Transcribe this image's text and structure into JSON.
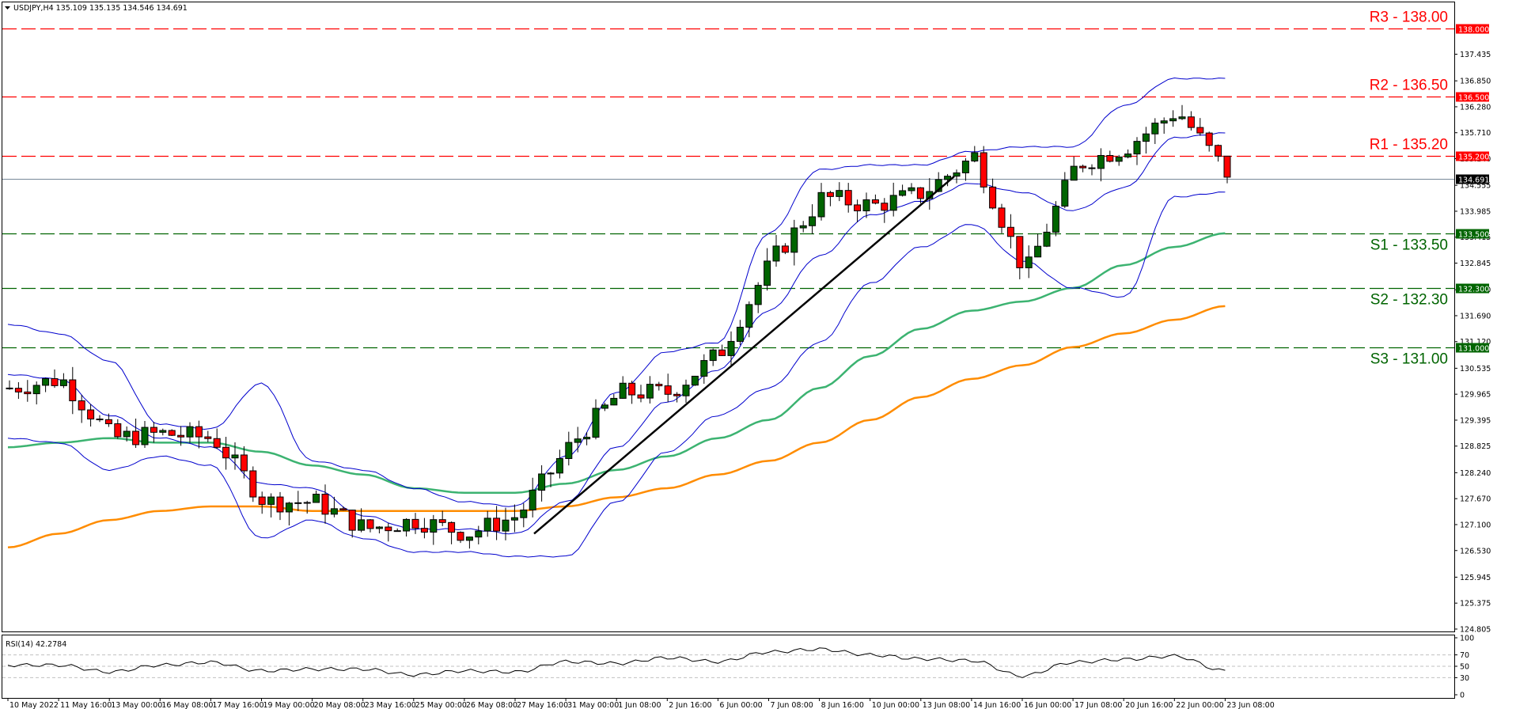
{
  "header": {
    "symbol": "USDJPY,H4",
    "ohlc": "135.109 135.135 134.546 134.691",
    "title_full": "USDJPY,H4  135.109 135.135 134.546 134.691",
    "dropdown_icon": "triangle-down-icon"
  },
  "colors": {
    "background": "#ffffff",
    "bull_candle": "#006400",
    "bear_candle": "#ff0000",
    "resistance": "#ff0000",
    "support": "#006400",
    "bollinger": "#0000cd",
    "ma_green": "#3cb371",
    "ma_orange": "#ff8c00",
    "trendline": "#000000",
    "current_price_line": "#778899",
    "rsi_line": "#000000",
    "rsi_levels": "#c0c0c0"
  },
  "levels": [
    {
      "id": "R3",
      "label": "R3 - 138.00",
      "value": 138.0,
      "badge": "138.000",
      "type": "resistance"
    },
    {
      "id": "R2",
      "label": "R2 - 136.50",
      "value": 136.5,
      "badge": "136.500",
      "type": "resistance"
    },
    {
      "id": "R1",
      "label": "R1 - 135.20",
      "value": 135.2,
      "badge": "135.200",
      "type": "resistance"
    },
    {
      "id": "S1",
      "label": "S1 - 133.50",
      "value": 133.5,
      "badge": "133.500",
      "type": "support"
    },
    {
      "id": "S2",
      "label": "S2 - 132.30",
      "value": 132.3,
      "badge": "132.300",
      "type": "support"
    },
    {
      "id": "S3",
      "label": "S3 - 131.00",
      "value": 131.0,
      "badge": "131.000",
      "type": "support"
    }
  ],
  "current_price": {
    "value": 134.691,
    "badge": "134.691"
  },
  "price_axis": {
    "ticks": [
      "137.435",
      "136.850",
      "136.280",
      "135.710",
      "135.140",
      "134.555",
      "133.985",
      "133.415",
      "132.845",
      "132.260",
      "131.690",
      "131.120",
      "130.535",
      "129.965",
      "129.395",
      "128.825",
      "128.240",
      "127.670",
      "127.100",
      "126.530",
      "125.945",
      "125.375",
      "124.805"
    ]
  },
  "rsi": {
    "label": "RSI(14) 42.2784",
    "axis_ticks": [
      "100",
      "70",
      "50",
      "30",
      "0"
    ],
    "levels": [
      70,
      50,
      30
    ]
  },
  "time_axis": {
    "labels": [
      "10 May 2022",
      "11 May 16:00",
      "13 May 00:00",
      "16 May 08:00",
      "17 May 16:00",
      "19 May 00:00",
      "20 May 08:00",
      "23 May 16:00",
      "25 May 00:00",
      "26 May 08:00",
      "27 May 16:00",
      "31 May 00:00",
      "1 Jun 08:00",
      "2 Jun 16:00",
      "6 Jun 00:00",
      "7 Jun 08:00",
      "8 Jun 16:00",
      "10 Jun 00:00",
      "13 Jun 08:00",
      "14 Jun 16:00",
      "16 Jun 00:00",
      "17 Jun 08:00",
      "20 Jun 16:00",
      "22 Jun 00:00",
      "23 Jun 08:00"
    ]
  },
  "chart_data": {
    "type": "candlestick",
    "title": "USDJPY,H4",
    "subtitle": "135.109 135.135 134.546 134.691",
    "xlabel": "",
    "ylabel": "",
    "ylim": [
      124.805,
      138.4
    ],
    "grid": false,
    "x": [
      "10 May 2022",
      "11 May 16:00",
      "13 May 00:00",
      "16 May 08:00",
      "17 May 16:00",
      "19 May 00:00",
      "20 May 08:00",
      "23 May 16:00",
      "25 May 00:00",
      "26 May 08:00",
      "27 May 16:00",
      "31 May 00:00",
      "1 Jun 08:00",
      "2 Jun 16:00",
      "6 Jun 00:00",
      "7 Jun 08:00",
      "8 Jun 16:00",
      "10 Jun 00:00",
      "13 Jun 08:00",
      "14 Jun 16:00",
      "16 Jun 00:00",
      "17 Jun 08:00",
      "20 Jun 16:00",
      "22 Jun 00:00",
      "23 Jun 08:00"
    ],
    "series": [
      {
        "name": "USDJPY close (approx, at time-axis labels)",
        "values": [
          130.1,
          130.3,
          129.0,
          129.1,
          129.0,
          127.6,
          127.6,
          127.0,
          127.2,
          126.9,
          127.3,
          128.8,
          130.0,
          130.0,
          130.9,
          132.9,
          134.3,
          134.1,
          134.4,
          135.2,
          132.6,
          135.0,
          135.4,
          136.2,
          134.8
        ]
      },
      {
        "name": "Bollinger upper (approx)",
        "values": [
          131.5,
          131.3,
          130.7,
          129.3,
          129.2,
          130.2,
          128.5,
          128.3,
          127.9,
          127.6,
          127.5,
          128.6,
          130.0,
          130.9,
          131.1,
          133.5,
          134.9,
          135.0,
          135.0,
          135.3,
          135.4,
          135.4,
          136.3,
          136.9,
          136.9
        ]
      },
      {
        "name": "Bollinger middle (approx)",
        "values": [
          130.4,
          130.3,
          129.5,
          129.0,
          128.8,
          128.0,
          127.9,
          127.3,
          127.0,
          127.0,
          126.9,
          127.6,
          128.8,
          129.8,
          130.5,
          131.8,
          133.0,
          133.9,
          134.2,
          134.6,
          134.4,
          134.0,
          134.5,
          135.6,
          135.7
        ]
      },
      {
        "name": "Bollinger lower (approx)",
        "values": [
          129.0,
          128.9,
          128.3,
          128.6,
          128.4,
          126.8,
          127.2,
          126.8,
          126.5,
          126.5,
          126.4,
          126.4,
          127.6,
          128.7,
          129.5,
          130.1,
          131.1,
          132.4,
          133.2,
          133.7,
          132.9,
          132.3,
          132.1,
          134.3,
          134.4
        ]
      },
      {
        "name": "MA green (approx)",
        "values": [
          128.8,
          128.9,
          129.0,
          128.9,
          128.9,
          128.7,
          128.4,
          128.2,
          127.9,
          127.8,
          127.8,
          128.0,
          128.3,
          128.6,
          129.0,
          129.4,
          130.1,
          130.8,
          131.4,
          131.8,
          132.0,
          132.3,
          132.8,
          133.2,
          133.5
        ]
      },
      {
        "name": "MA orange (approx)",
        "values": [
          126.6,
          126.9,
          127.2,
          127.4,
          127.5,
          127.5,
          127.4,
          127.4,
          127.4,
          127.4,
          127.4,
          127.5,
          127.7,
          127.9,
          128.2,
          128.5,
          128.9,
          129.4,
          129.9,
          130.3,
          130.6,
          131.0,
          131.3,
          131.6,
          131.9
        ]
      },
      {
        "name": "RSI(14) (approx)",
        "values": [
          52,
          52,
          40,
          52,
          57,
          42,
          45,
          45,
          35,
          42,
          40,
          58,
          55,
          65,
          58,
          75,
          80,
          70,
          63,
          60,
          33,
          57,
          62,
          68,
          42
        ]
      }
    ],
    "annotations": [
      "R3 - 138.00",
      "R2 - 136.50",
      "R1 - 135.20",
      "S1 - 133.50",
      "S2 - 132.30",
      "S3 - 131.00",
      "Upward trendline from ~126.9 (27 May 16:00) to ~134.7 (13 Jun 08:00)",
      "Current price 134.691"
    ],
    "legend": []
  }
}
